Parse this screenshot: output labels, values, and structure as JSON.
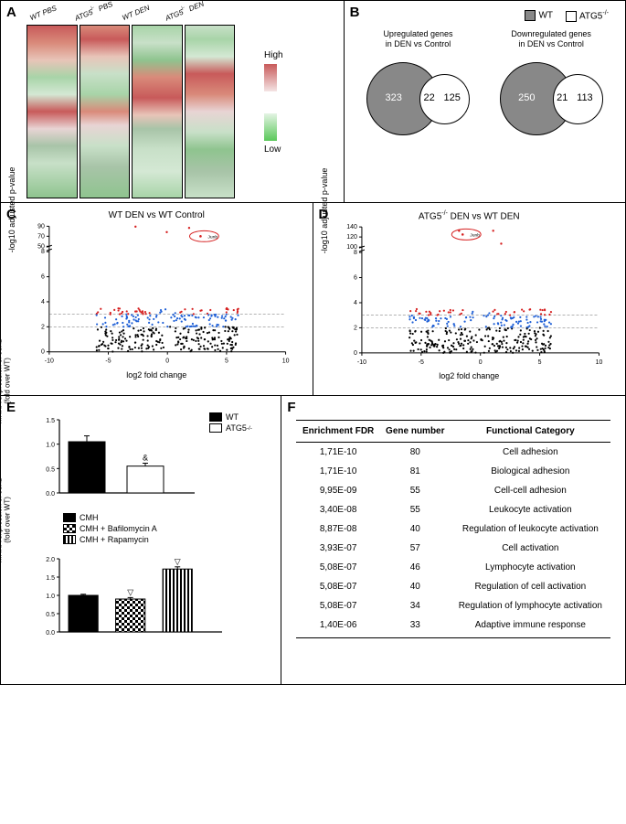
{
  "panelA": {
    "label": "A",
    "columns": [
      "WT PBS",
      "ATG5-/- PBS",
      "WT DEN",
      "ATG5-/- DEN"
    ],
    "legend_high": "High",
    "legend_low": "Low",
    "grad_high_colors": [
      "#c85a5a",
      "#f4e4e4"
    ],
    "grad_low_colors": [
      "#e4f4e4",
      "#5ac85a"
    ]
  },
  "panelB": {
    "label": "B",
    "legend": [
      {
        "label": "WT",
        "fill": "#888888"
      },
      {
        "label": "ATG5-/-",
        "fill": "#ffffff"
      }
    ],
    "venns": [
      {
        "title": "Upregulated genes\nin DEN vs Control",
        "big": 323,
        "overlap": 22,
        "small": 125
      },
      {
        "title": "Downregulated genes\nin DEN vs Control",
        "big": 250,
        "overlap": 21,
        "small": 113
      }
    ]
  },
  "panelC": {
    "label": "C",
    "title": "WT DEN vs WT Control",
    "xlabel": "log2 fold change",
    "ylabel": "-log10 adjusted p-value",
    "xlim": [
      -10,
      10
    ],
    "ylim_main": [
      0,
      8
    ],
    "ylim_broken": [
      50,
      90
    ],
    "xticks": [
      -10,
      -5,
      0,
      5,
      10
    ],
    "yticks_main": [
      0,
      2,
      4,
      6,
      8
    ],
    "yticks_broken": [
      50,
      70,
      90
    ],
    "circled_label": "Junb",
    "circled_pos": [
      2.8,
      70
    ],
    "point_colors": {
      "ns": "#000000",
      "mid": "#1e5fd6",
      "sig": "#d62020"
    },
    "dashed_y": [
      2,
      3
    ]
  },
  "panelD": {
    "label": "D",
    "title": "ATG5-/- DEN vs WT DEN",
    "xlabel": "log2 fold change",
    "ylabel": "-log10 adjusted p-value",
    "xlim": [
      -10,
      10
    ],
    "ylim_main": [
      0,
      8
    ],
    "ylim_broken": [
      100,
      140
    ],
    "xticks": [
      -10,
      -5,
      0,
      5,
      10
    ],
    "yticks_main": [
      0,
      2,
      4,
      6,
      8
    ],
    "yticks_broken": [
      100,
      120,
      140
    ],
    "circled_label": "Junb",
    "circled_pos": [
      -1.5,
      125
    ],
    "point_colors": {
      "ns": "#000000",
      "mid": "#1e5fd6",
      "sig": "#d62020"
    },
    "dashed_y": [
      2,
      3
    ]
  },
  "panelE": {
    "label": "E",
    "chart1": {
      "ylabel": "mRNA expression of JunB\n(fold over WT)",
      "ymax": 1.5,
      "yticks": [
        0.0,
        0.5,
        1.0,
        1.5
      ],
      "legend": [
        {
          "label": "WT",
          "fill": "#000000"
        },
        {
          "label": "ATG5-/-",
          "fill": "#ffffff"
        }
      ],
      "bars": [
        {
          "value": 1.05,
          "err": 0.12,
          "fill": "#000000",
          "annot": ""
        },
        {
          "value": 0.55,
          "err": 0.06,
          "fill": "#ffffff",
          "annot": "&"
        }
      ]
    },
    "chart2": {
      "ylabel": "mRNA expression of JunB\n(fold over WT)",
      "ymax": 2.0,
      "yticks": [
        0.0,
        0.5,
        1.0,
        1.5,
        2.0
      ],
      "legend": [
        {
          "label": "CMH",
          "fill": "#000000",
          "pattern": "solid"
        },
        {
          "label": "CMH + Bafilomycin A",
          "pattern": "checker"
        },
        {
          "label": "CMH + Rapamycin",
          "pattern": "stripes"
        }
      ],
      "bars": [
        {
          "value": 1.0,
          "err": 0.03,
          "pattern": "solid",
          "annot": ""
        },
        {
          "value": 0.9,
          "err": 0.04,
          "pattern": "checker",
          "annot": "▽"
        },
        {
          "value": 1.72,
          "err": 0.06,
          "pattern": "stripes",
          "annot": "▽"
        }
      ]
    }
  },
  "panelF": {
    "label": "F",
    "headers": [
      "Enrichment FDR",
      "Gene number",
      "Functional Category"
    ],
    "rows": [
      [
        "1,71E-10",
        "80",
        "Cell adhesion"
      ],
      [
        "1,71E-10",
        "81",
        "Biological adhesion"
      ],
      [
        "9,95E-09",
        "55",
        "Cell-cell adhesion"
      ],
      [
        "3,40E-08",
        "55",
        "Leukocyte activation"
      ],
      [
        "8,87E-08",
        "40",
        "Regulation of leukocyte activation"
      ],
      [
        "3,93E-07",
        "57",
        "Cell activation"
      ],
      [
        "5,08E-07",
        "46",
        "Lymphocyte activation"
      ],
      [
        "5,08E-07",
        "40",
        "Regulation of cell activation"
      ],
      [
        "5,08E-07",
        "34",
        "Regulation of lymphocyte activation"
      ],
      [
        "1,40E-06",
        "33",
        "Adaptive immune response"
      ]
    ]
  }
}
